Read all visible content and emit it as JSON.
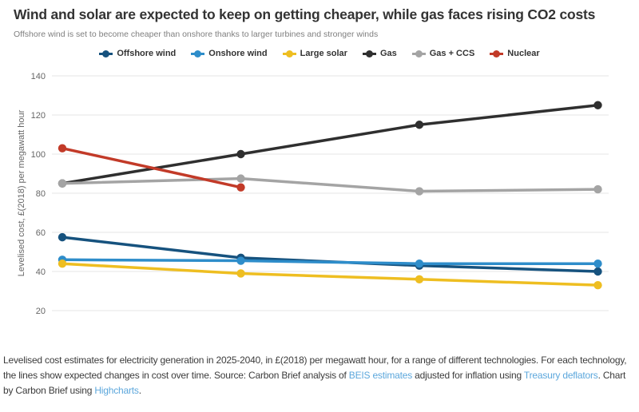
{
  "header": {
    "title": "Wind and solar are expected to keep on getting cheaper, while gas faces rising CO2 costs",
    "subtitle": "Offshore wind is set to become cheaper than onshore thanks to larger turbines and stronger winds"
  },
  "colors": {
    "link": "#5ca7dc",
    "grid": "#e6e6e6",
    "axis_text": "#666666",
    "title_text": "#333333",
    "subtitle_text": "#7f7f7f",
    "footer_text": "#3b3b3b"
  },
  "chart_data": {
    "type": "line",
    "title": "Wind and solar are expected to keep on getting cheaper, while gas faces rising CO2 costs",
    "subtitle": "Offshore wind is set to become cheaper than onshore thanks to larger turbines and stronger winds",
    "xlabel": "",
    "ylabel": "Levelised cost, £(2018) per megawatt hour",
    "x_range": [
      2025,
      2040
    ],
    "ylim": [
      20,
      140
    ],
    "yticks": [
      20,
      40,
      60,
      80,
      100,
      120,
      140
    ],
    "grid": true,
    "legend_position": "top",
    "x_axis_labels_visible": false,
    "series": [
      {
        "name": "Offshore wind",
        "color": "#16527e",
        "x": [
          2025,
          2030,
          2035,
          2040
        ],
        "values": [
          57.5,
          47,
          43,
          40
        ]
      },
      {
        "name": "Onshore wind",
        "color": "#2e8dca",
        "x": [
          2025,
          2030,
          2035,
          2040
        ],
        "values": [
          46,
          45.5,
          44,
          44
        ]
      },
      {
        "name": "Large solar",
        "color": "#eebe21",
        "x": [
          2025,
          2030,
          2035,
          2040
        ],
        "values": [
          44,
          39,
          36,
          33
        ]
      },
      {
        "name": "Gas",
        "color": "#2f2f2f",
        "x": [
          2025,
          2030,
          2035,
          2040
        ],
        "values": [
          85,
          100,
          115,
          125
        ]
      },
      {
        "name": "Gas + CCS",
        "color": "#a4a4a4",
        "x": [
          2025,
          2030,
          2035,
          2040
        ],
        "values": [
          85,
          87.5,
          81,
          82
        ]
      },
      {
        "name": "Nuclear",
        "color": "#c23a28",
        "x": [
          2025,
          2030
        ],
        "values": [
          103,
          83
        ]
      }
    ]
  },
  "footer": {
    "segments": [
      {
        "text": "Levelised cost estimates for electricity generation in 2025-2040, in £(2018) per megawatt hour, for a range of different technologies. For each technology, the lines show expected changes in cost over time. Source: Carbon Brief analysis of ",
        "link": false
      },
      {
        "text": "BEIS estimates",
        "link": true
      },
      {
        "text": " adjusted for inflation using ",
        "link": false
      },
      {
        "text": "Treasury deflators",
        "link": true
      },
      {
        "text": ". Chart by Carbon Brief using ",
        "link": false
      },
      {
        "text": "Highcharts",
        "link": true
      },
      {
        "text": ".",
        "link": false
      }
    ]
  }
}
